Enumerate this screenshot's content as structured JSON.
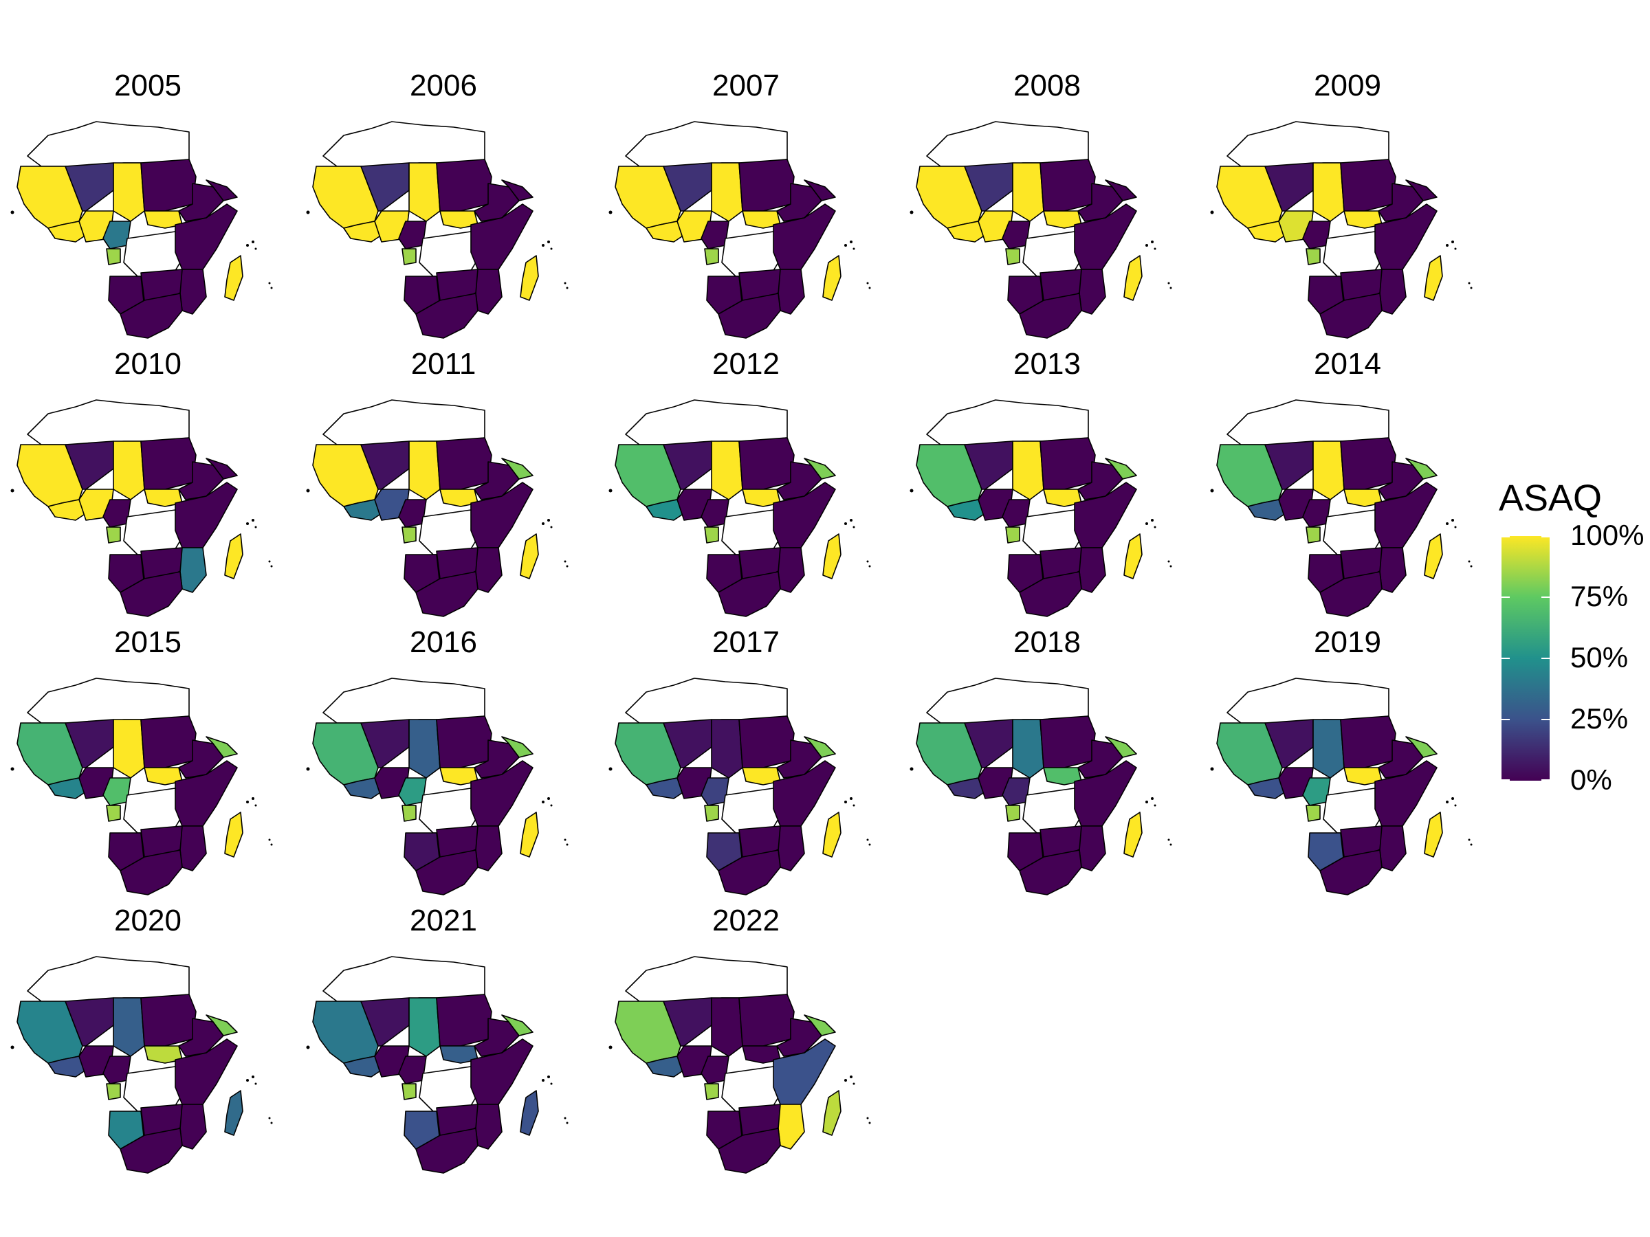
{
  "legend": {
    "title": "ASAQ",
    "ticks": [
      "0%",
      "25%",
      "50%",
      "75%",
      "100%"
    ],
    "tick_values": [
      0,
      25,
      50,
      75,
      100
    ],
    "palette": [
      "#440154",
      "#3b528b",
      "#21918c",
      "#5ec962",
      "#fde725"
    ]
  },
  "panels": [
    {
      "year": "2005",
      "shares": {
        "west": 100,
        "sahel_mid": 15,
        "chad": 100,
        "sudan": 0,
        "ethiopia": 0,
        "horn": 0,
        "gulf": 100,
        "nigeria": 100,
        "cameroon": 40,
        "gabon": 85,
        "south_sudan": 100,
        "east": 0,
        "angola": 0,
        "zambia": 0,
        "moz": 0,
        "southern": 0,
        "madagascar": 100
      }
    },
    {
      "year": "2006",
      "shares": {
        "west": 100,
        "sahel_mid": 15,
        "chad": 100,
        "sudan": 0,
        "ethiopia": 0,
        "horn": 0,
        "gulf": 100,
        "nigeria": 100,
        "cameroon": 0,
        "gabon": 85,
        "south_sudan": 100,
        "east": 0,
        "angola": 0,
        "zambia": 0,
        "moz": 0,
        "southern": 0,
        "madagascar": 100
      }
    },
    {
      "year": "2007",
      "shares": {
        "west": 100,
        "sahel_mid": 15,
        "chad": 100,
        "sudan": 0,
        "ethiopia": 0,
        "horn": 0,
        "gulf": 100,
        "nigeria": 100,
        "cameroon": 0,
        "gabon": 85,
        "south_sudan": 100,
        "east": 0,
        "angola": 0,
        "zambia": 0,
        "moz": 0,
        "southern": 0,
        "madagascar": 100
      }
    },
    {
      "year": "2008",
      "shares": {
        "west": 100,
        "sahel_mid": 15,
        "chad": 100,
        "sudan": 0,
        "ethiopia": 0,
        "horn": 0,
        "gulf": 100,
        "nigeria": 100,
        "cameroon": 0,
        "gabon": 85,
        "south_sudan": 100,
        "east": 0,
        "angola": 0,
        "zambia": 0,
        "moz": 0,
        "southern": 0,
        "madagascar": 100
      }
    },
    {
      "year": "2009",
      "shares": {
        "west": 100,
        "sahel_mid": 5,
        "chad": 100,
        "sudan": 0,
        "ethiopia": 0,
        "horn": 0,
        "gulf": 100,
        "nigeria": 95,
        "cameroon": 0,
        "gabon": 85,
        "south_sudan": 100,
        "east": 0,
        "angola": 0,
        "zambia": 0,
        "moz": 0,
        "southern": 0,
        "madagascar": 100
      }
    },
    {
      "year": "2010",
      "shares": {
        "west": 100,
        "sahel_mid": 5,
        "chad": 100,
        "sudan": 0,
        "ethiopia": 0,
        "horn": 0,
        "gulf": 100,
        "nigeria": 100,
        "cameroon": 0,
        "gabon": 85,
        "south_sudan": 100,
        "east": 0,
        "angola": 0,
        "zambia": 0,
        "moz": 40,
        "southern": 0,
        "madagascar": 100
      }
    },
    {
      "year": "2011",
      "shares": {
        "west": 100,
        "sahel_mid": 5,
        "chad": 100,
        "sudan": 0,
        "ethiopia": 0,
        "horn": 80,
        "gulf": 40,
        "nigeria": 25,
        "cameroon": 0,
        "gabon": 85,
        "south_sudan": 100,
        "east": 0,
        "angola": 0,
        "zambia": 0,
        "moz": 0,
        "southern": 0,
        "madagascar": 100
      }
    },
    {
      "year": "2012",
      "shares": {
        "west": 70,
        "sahel_mid": 5,
        "chad": 100,
        "sudan": 0,
        "ethiopia": 0,
        "horn": 80,
        "gulf": 50,
        "nigeria": 0,
        "cameroon": 0,
        "gabon": 85,
        "south_sudan": 100,
        "east": 0,
        "angola": 0,
        "zambia": 0,
        "moz": 0,
        "southern": 0,
        "madagascar": 100
      }
    },
    {
      "year": "2013",
      "shares": {
        "west": 70,
        "sahel_mid": 5,
        "chad": 100,
        "sudan": 0,
        "ethiopia": 0,
        "horn": 80,
        "gulf": 50,
        "nigeria": 0,
        "cameroon": 0,
        "gabon": 85,
        "south_sudan": 100,
        "east": 0,
        "angola": 0,
        "zambia": 0,
        "moz": 0,
        "southern": 0,
        "madagascar": 100
      }
    },
    {
      "year": "2014",
      "shares": {
        "west": 70,
        "sahel_mid": 5,
        "chad": 100,
        "sudan": 0,
        "ethiopia": 0,
        "horn": 80,
        "gulf": 30,
        "nigeria": 0,
        "cameroon": 0,
        "gabon": 85,
        "south_sudan": 100,
        "east": 0,
        "angola": 0,
        "zambia": 0,
        "moz": 0,
        "southern": 0,
        "madagascar": 100
      }
    },
    {
      "year": "2015",
      "shares": {
        "west": 65,
        "sahel_mid": 5,
        "chad": 100,
        "sudan": 0,
        "ethiopia": 0,
        "horn": 80,
        "gulf": 45,
        "nigeria": 0,
        "cameroon": 70,
        "gabon": 85,
        "south_sudan": 100,
        "east": 0,
        "angola": 0,
        "zambia": 0,
        "moz": 0,
        "southern": 0,
        "madagascar": 100
      }
    },
    {
      "year": "2016",
      "shares": {
        "west": 65,
        "sahel_mid": 5,
        "chad": 30,
        "sudan": 0,
        "ethiopia": 0,
        "horn": 80,
        "gulf": 30,
        "nigeria": 0,
        "cameroon": 55,
        "gabon": 85,
        "south_sudan": 100,
        "east": 0,
        "angola": 5,
        "zambia": 0,
        "moz": 0,
        "southern": 0,
        "madagascar": 100
      }
    },
    {
      "year": "2017",
      "shares": {
        "west": 65,
        "sahel_mid": 5,
        "chad": 5,
        "sudan": 0,
        "ethiopia": 0,
        "horn": 80,
        "gulf": 25,
        "nigeria": 0,
        "cameroon": 20,
        "gabon": 85,
        "south_sudan": 100,
        "east": 0,
        "angola": 15,
        "zambia": 0,
        "moz": 0,
        "southern": 0,
        "madagascar": 100
      }
    },
    {
      "year": "2018",
      "shares": {
        "west": 65,
        "sahel_mid": 5,
        "chad": 40,
        "sudan": 0,
        "ethiopia": 0,
        "horn": 80,
        "gulf": 15,
        "nigeria": 0,
        "cameroon": 10,
        "gabon": 85,
        "south_sudan": 70,
        "east": 0,
        "angola": 0,
        "zambia": 0,
        "moz": 0,
        "southern": 0,
        "madagascar": 100
      }
    },
    {
      "year": "2019",
      "shares": {
        "west": 65,
        "sahel_mid": 5,
        "chad": 35,
        "sudan": 0,
        "ethiopia": 0,
        "horn": 80,
        "gulf": 25,
        "nigeria": 0,
        "cameroon": 55,
        "gabon": 85,
        "south_sudan": 100,
        "east": 0,
        "angola": 25,
        "zambia": 0,
        "moz": 0,
        "southern": 0,
        "madagascar": 100
      }
    },
    {
      "year": "2020",
      "shares": {
        "west": 45,
        "sahel_mid": 5,
        "chad": 30,
        "sudan": 0,
        "ethiopia": 0,
        "horn": 80,
        "gulf": 25,
        "nigeria": 0,
        "cameroon": 0,
        "gabon": 85,
        "south_sudan": 90,
        "east": 0,
        "angola": 45,
        "zambia": 0,
        "moz": 0,
        "southern": 0,
        "madagascar": 35
      }
    },
    {
      "year": "2021",
      "shares": {
        "west": 40,
        "sahel_mid": 5,
        "chad": 55,
        "sudan": 0,
        "ethiopia": 0,
        "horn": 80,
        "gulf": 30,
        "nigeria": 0,
        "cameroon": 0,
        "gabon": 85,
        "south_sudan": 30,
        "east": 0,
        "angola": 25,
        "zambia": 0,
        "moz": 0,
        "southern": 0,
        "madagascar": 25
      }
    },
    {
      "year": "2022",
      "shares": {
        "west": 80,
        "sahel_mid": 5,
        "chad": 0,
        "sudan": 0,
        "ethiopia": 0,
        "horn": 80,
        "gulf": 30,
        "nigeria": 0,
        "cameroon": 0,
        "gabon": 85,
        "south_sudan": 0,
        "east": 25,
        "angola": 0,
        "zambia": 0,
        "moz": 100,
        "southern": 0,
        "madagascar": 90
      }
    }
  ]
}
